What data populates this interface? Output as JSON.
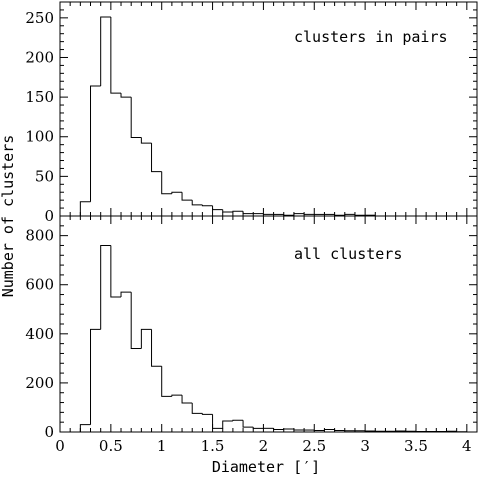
{
  "figure": {
    "ylabel": "Number of clusters",
    "xlabel": "Diameter [′]"
  },
  "chart_data": [
    {
      "type": "bar",
      "title": "",
      "annotation": "clusters in pairs",
      "xlabel": "",
      "ylabel": "",
      "xlim": [
        0,
        4.1
      ],
      "ylim": [
        0,
        270
      ],
      "grid": false,
      "bin_width": 0.1,
      "x": [
        0.2,
        0.3,
        0.4,
        0.5,
        0.6,
        0.7,
        0.8,
        0.9,
        1.0,
        1.1,
        1.2,
        1.3,
        1.4,
        1.5,
        1.6,
        1.7,
        1.8,
        1.9,
        2.0,
        2.1,
        2.2,
        2.3,
        2.4,
        2.5,
        2.6,
        2.7,
        2.8,
        2.9,
        3.0,
        3.1,
        3.2
      ],
      "values": [
        18,
        164,
        251,
        155,
        150,
        99,
        92,
        56,
        28,
        30,
        20,
        14,
        13,
        8,
        5,
        6,
        3,
        3,
        2,
        2,
        1,
        3,
        2,
        2,
        2,
        1,
        2,
        1,
        1,
        0,
        0
      ],
      "y_ticks": [
        "0",
        "50",
        "100",
        "150",
        "200",
        "250"
      ]
    },
    {
      "type": "bar",
      "title": "",
      "annotation": "all clusters",
      "xlabel": "Diameter [′]",
      "ylabel": "",
      "xlim": [
        0,
        4.1
      ],
      "ylim": [
        0,
        880
      ],
      "grid": false,
      "bin_width": 0.1,
      "x": [
        0.2,
        0.3,
        0.4,
        0.5,
        0.6,
        0.7,
        0.8,
        0.9,
        1.0,
        1.1,
        1.2,
        1.3,
        1.4,
        1.5,
        1.6,
        1.7,
        1.8,
        1.9,
        2.0,
        2.1,
        2.2,
        2.3,
        2.4,
        2.5,
        2.6,
        2.7,
        2.8,
        2.9,
        3.0,
        3.1,
        3.2,
        3.3,
        3.4,
        3.5,
        3.6,
        3.7,
        3.8,
        3.9
      ],
      "values": [
        30,
        418,
        760,
        550,
        570,
        340,
        418,
        268,
        145,
        150,
        118,
        76,
        72,
        15,
        45,
        48,
        20,
        15,
        15,
        10,
        12,
        8,
        8,
        6,
        10,
        6,
        5,
        5,
        4,
        3,
        3,
        4,
        3,
        2,
        2,
        2,
        3,
        1
      ],
      "x_ticks": [
        "0",
        "0.5",
        "1",
        "1.5",
        "2",
        "2.5",
        "3",
        "3.5",
        "4"
      ],
      "y_ticks": [
        "0",
        "200",
        "400",
        "600",
        "800"
      ]
    }
  ]
}
